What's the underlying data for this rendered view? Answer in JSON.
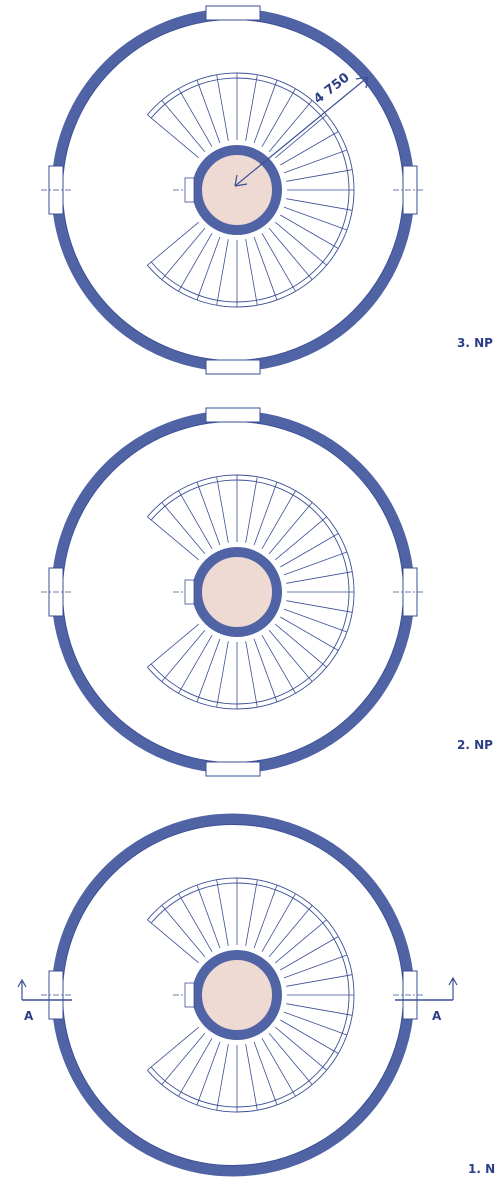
{
  "dimension": "4 750",
  "floors": [
    {
      "label": "3. NP"
    },
    {
      "label": "2. NP"
    },
    {
      "label": "1. N"
    }
  ],
  "section_marks": [
    "A",
    "A"
  ]
}
